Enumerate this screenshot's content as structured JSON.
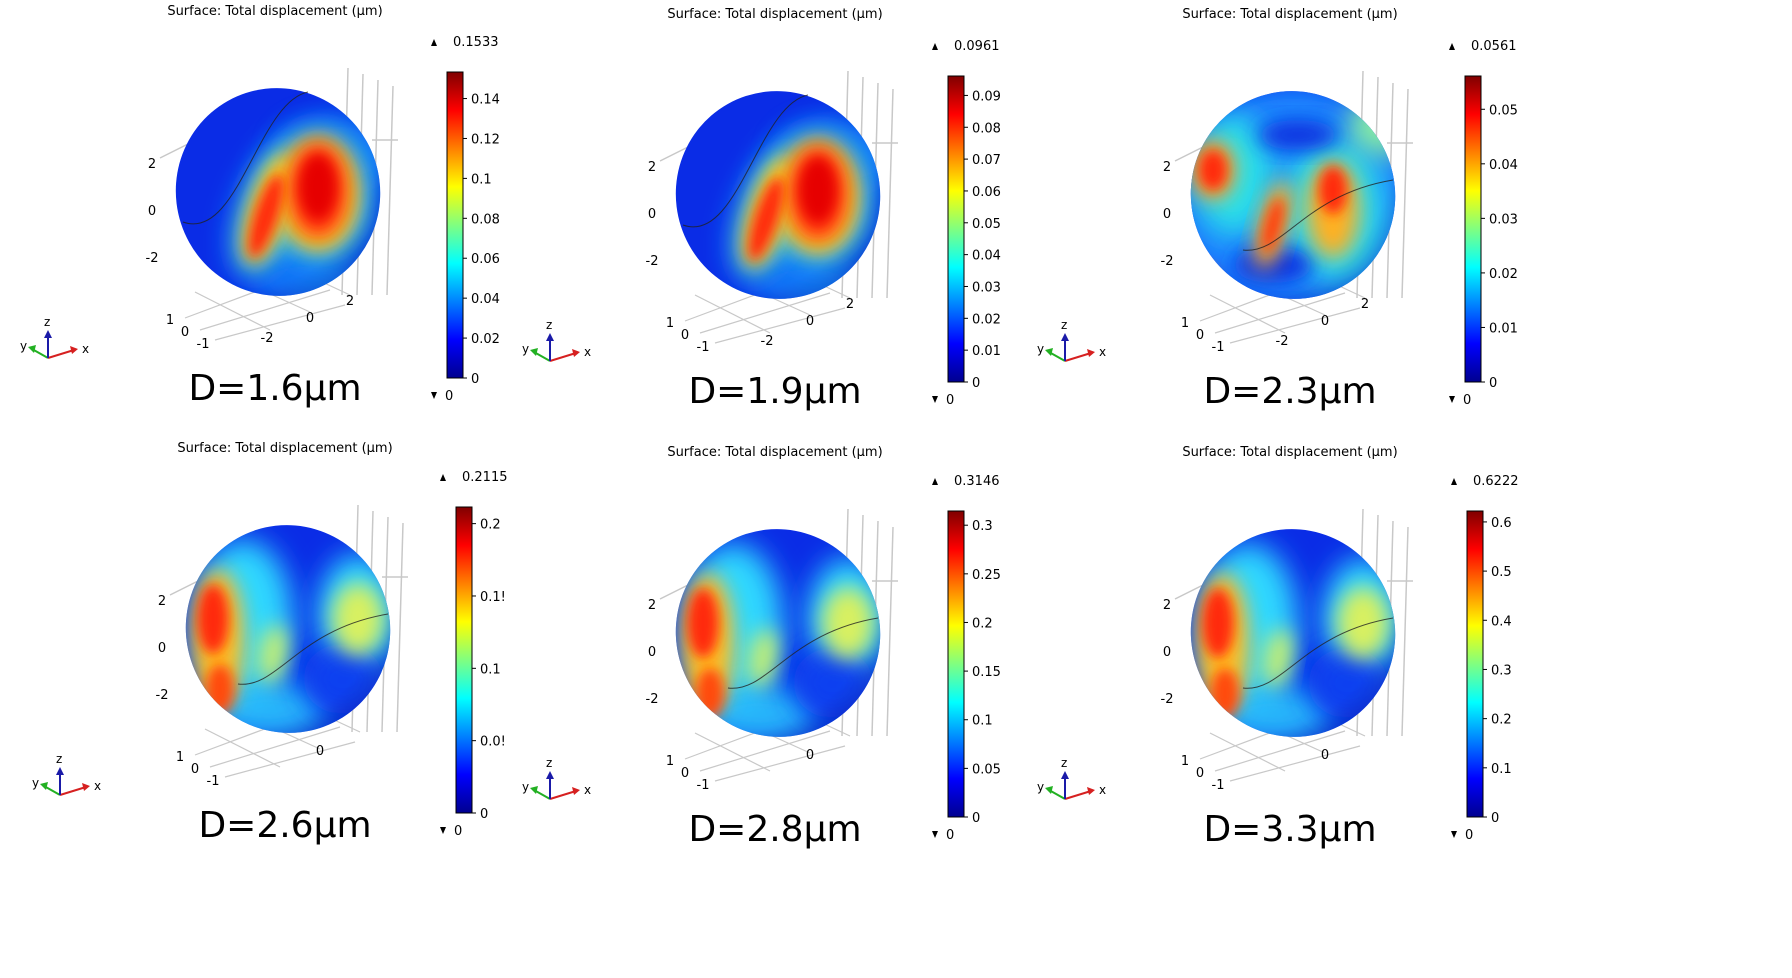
{
  "figure": {
    "panels": [
      {
        "title": "Surface: Total displacement (µm)",
        "label": "D=1.6µm",
        "max_label": "0.1533",
        "min_label": "0",
        "y_tick_labels": [
          "2",
          "0",
          "-2"
        ],
        "x_tick_labels": [
          "-2",
          "0",
          "2"
        ],
        "depth_tick_labels": [
          "1",
          "0",
          "-1"
        ],
        "pattern": "center-lobes"
      },
      {
        "title": "Surface: Total displacement (µm)",
        "label": "D=1.9µm",
        "max_label": "0.0961",
        "min_label": "0",
        "y_tick_labels": [
          "2",
          "0",
          "-2"
        ],
        "x_tick_labels": [
          "-2",
          "0",
          "2"
        ],
        "depth_tick_labels": [
          "1",
          "0",
          "-1"
        ],
        "pattern": "center-lobes"
      },
      {
        "title": "Surface: Total displacement (µm)",
        "label": "D=2.3µm",
        "max_label": "0.0561",
        "min_label": "0",
        "y_tick_labels": [
          "2",
          "0",
          "-2"
        ],
        "x_tick_labels": [
          "-2",
          "0",
          "2"
        ],
        "depth_tick_labels": [
          "1",
          "0",
          "-1"
        ],
        "pattern": "mixed"
      },
      {
        "title": "Surface: Total displacement (µm)",
        "label": "D=2.6µm",
        "max_label": "0.2115",
        "min_label": "0",
        "y_tick_labels": [
          "2",
          "0",
          "-2"
        ],
        "x_tick_labels": [
          "0"
        ],
        "depth_tick_labels": [
          "1",
          "0",
          "-1"
        ],
        "pattern": "edge-lobes"
      },
      {
        "title": "Surface: Total displacement (µm)",
        "label": "D=2.8µm",
        "max_label": "0.3146",
        "min_label": "0",
        "y_tick_labels": [
          "2",
          "0",
          "-2"
        ],
        "x_tick_labels": [
          "0"
        ],
        "depth_tick_labels": [
          "1",
          "0",
          "-1"
        ],
        "pattern": "edge-lobes"
      },
      {
        "title": "Surface: Total displacement (µm)",
        "label": "D=3.3µm",
        "max_label": "0.6222",
        "min_label": "0",
        "y_tick_labels": [
          "2",
          "0",
          "-2"
        ],
        "x_tick_labels": [
          "0"
        ],
        "depth_tick_labels": [
          "1",
          "0",
          "-1"
        ],
        "pattern": "edge-lobes"
      }
    ],
    "axis_triad": {
      "x": "x",
      "y": "y",
      "z": "z"
    },
    "colormap": [
      "#00008f",
      "#0000ff",
      "#0080ff",
      "#00ffff",
      "#80ff80",
      "#ffff00",
      "#ff8000",
      "#ff0000",
      "#800000"
    ],
    "colors": {
      "arrow_x": "#d62020",
      "arrow_y": "#22b022",
      "arrow_z": "#1a1aa8",
      "outline": "#222222",
      "grid": "#c8c8c8"
    }
  },
  "chart_data": [
    {
      "type": "heatmap",
      "title": "Surface: Total displacement (µm)",
      "label": "D=1.6µm",
      "colorbar": {
        "min": 0,
        "max": 0.1533,
        "ticks": [
          0,
          0.02,
          0.04,
          0.06,
          0.08,
          0.1,
          0.12,
          0.14
        ],
        "tick_labels": [
          "0",
          "0.02",
          "0.04",
          "0.06",
          "0.08",
          "0.1",
          "0.12",
          "0.14"
        ]
      }
    },
    {
      "type": "heatmap",
      "title": "Surface: Total displacement (µm)",
      "label": "D=1.9µm",
      "colorbar": {
        "min": 0,
        "max": 0.0961,
        "ticks": [
          0,
          0.01,
          0.02,
          0.03,
          0.04,
          0.05,
          0.06,
          0.07,
          0.08,
          0.09
        ],
        "tick_labels": [
          "0",
          "0.01",
          "0.02",
          "0.03",
          "0.04",
          "0.05",
          "0.06",
          "0.07",
          "0.08",
          "0.09"
        ]
      }
    },
    {
      "type": "heatmap",
      "title": "Surface: Total displacement (µm)",
      "label": "D=2.3µm",
      "colorbar": {
        "min": 0,
        "max": 0.0561,
        "ticks": [
          0,
          0.01,
          0.02,
          0.03,
          0.04,
          0.05
        ],
        "tick_labels": [
          "0",
          "0.01",
          "0.02",
          "0.03",
          "0.04",
          "0.05"
        ]
      }
    },
    {
      "type": "heatmap",
      "title": "Surface: Total displacement (µm)",
      "label": "D=2.6µm",
      "colorbar": {
        "min": 0,
        "max": 0.2115,
        "ticks": [
          0,
          0.05,
          0.1,
          0.15,
          0.2
        ],
        "tick_labels": [
          "0",
          "0.0!",
          "0.1",
          "0.1!",
          "0.2"
        ]
      }
    },
    {
      "type": "heatmap",
      "title": "Surface: Total displacement (µm)",
      "label": "D=2.8µm",
      "colorbar": {
        "min": 0,
        "max": 0.3146,
        "ticks": [
          0,
          0.05,
          0.1,
          0.15,
          0.2,
          0.25,
          0.3
        ],
        "tick_labels": [
          "0",
          "0.05",
          "0.1",
          "0.15",
          "0.2",
          "0.25",
          "0.3"
        ]
      }
    },
    {
      "type": "heatmap",
      "title": "Surface: Total displacement (µm)",
      "label": "D=3.3µm",
      "colorbar": {
        "min": 0,
        "max": 0.6222,
        "ticks": [
          0,
          0.1,
          0.2,
          0.3,
          0.4,
          0.5,
          0.6
        ],
        "tick_labels": [
          "0",
          "0.1",
          "0.2",
          "0.3",
          "0.4",
          "0.5",
          "0.6"
        ]
      }
    }
  ]
}
